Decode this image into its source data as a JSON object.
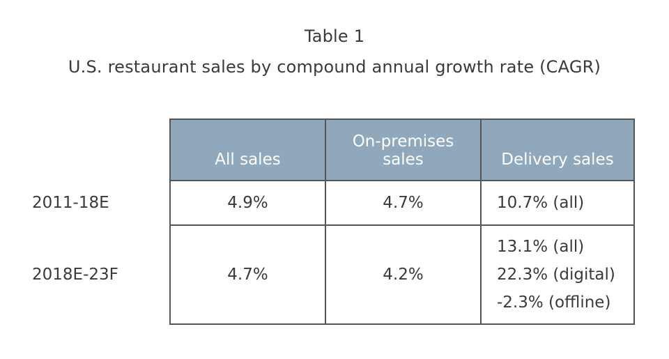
{
  "title_line1": "Table 1",
  "title_line2": "U.S. restaurant sales by compound annual growth rate (CAGR)",
  "chart_data": {
    "type": "table",
    "title": "Table 1",
    "subtitle": "U.S. restaurant sales by compound annual growth rate (CAGR)",
    "columns": [
      "",
      "All sales",
      "On-premises sales",
      "Delivery sales"
    ],
    "header_lines": {
      "all_sales": [
        "All sales"
      ],
      "on_premises": [
        "On-premises",
        "sales"
      ],
      "delivery": [
        "Delivery sales"
      ]
    },
    "rows": [
      {
        "label": "2011-18E",
        "all_sales": "4.9%",
        "on_premises": "4.7%",
        "delivery": [
          "10.7% (all)"
        ]
      },
      {
        "label": "2018E-23F",
        "all_sales": "4.7%",
        "on_premises": "4.2%",
        "delivery": [
          "13.1% (all)",
          "22.3% (digital)",
          "-2.3% (offline)"
        ]
      }
    ],
    "header_color": "#8fa8bb",
    "border_color": "#555555"
  }
}
